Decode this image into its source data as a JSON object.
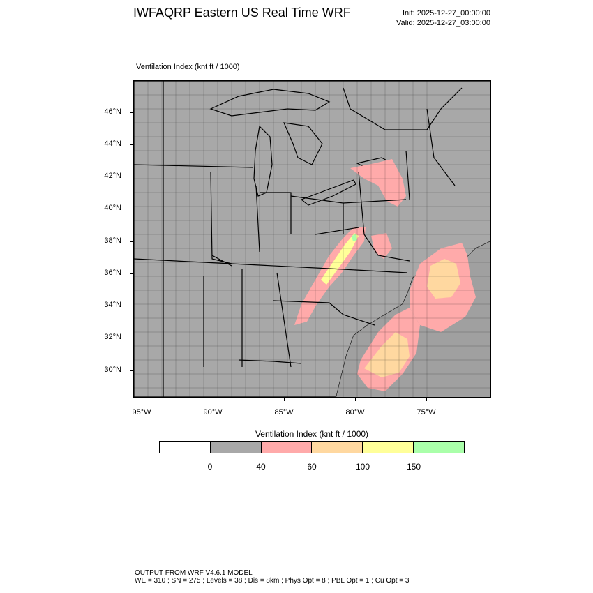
{
  "header": {
    "title": "IWFAQRP Eastern US Real Time WRF",
    "init": "Init: 2025-12-27_00:00:00",
    "valid": "Valid: 2025-12-27_03:00:00"
  },
  "map": {
    "field_title": "Ventilation Index   (knt ft / 1000)",
    "lat_labels": [
      "46°N",
      "44°N",
      "42°N",
      "40°N",
      "38°N",
      "36°N",
      "34°N",
      "32°N",
      "30°N"
    ],
    "lon_labels": [
      "95°W",
      "90°W",
      "85°W",
      "80°W",
      "75°W"
    ],
    "background_color": "#a8a8a8"
  },
  "legend": {
    "title": "Ventilation Index  (knt ft / 1000)",
    "colors": [
      "#ffffff",
      "#a8a8a8",
      "#ffaaaa",
      "#ffd8a0",
      "#ffff99",
      "#aaffaa"
    ],
    "labels": [
      "0",
      "40",
      "60",
      "100",
      "150"
    ]
  },
  "footer": {
    "line1": "OUTPUT FROM WRF V4.6.1 MODEL",
    "line2": "WE = 310 ; SN = 275 ; Levels = 38 ; Dis = 8km ; Phys Opt = 8 ; PBL Opt = 1 ; Cu Opt = 3"
  }
}
